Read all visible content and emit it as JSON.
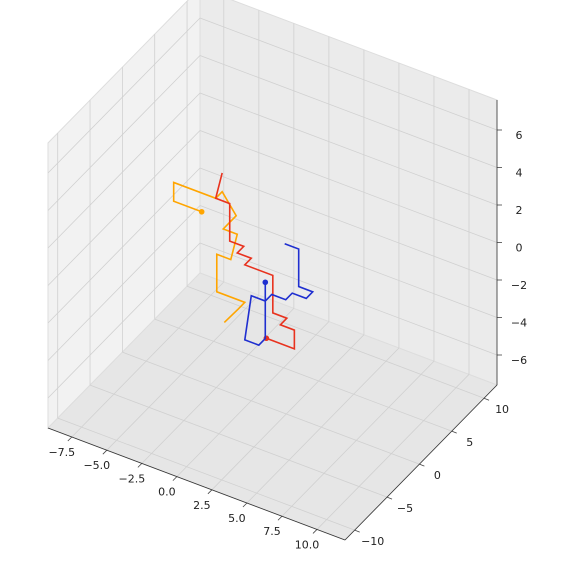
{
  "chart_data": {
    "type": "line3d",
    "xlim": [
      -9.2,
      12
    ],
    "ylim": [
      -11.5,
      12
    ],
    "zlim": [
      -7.6,
      7.6
    ],
    "xticks": [
      {
        "value": -7.5,
        "label": "−7.5"
      },
      {
        "value": -5,
        "label": "−5.0"
      },
      {
        "value": -2.5,
        "label": "−2.5"
      },
      {
        "value": 0,
        "label": "0.0"
      },
      {
        "value": 2.5,
        "label": "2.5"
      },
      {
        "value": 5,
        "label": "5.0"
      },
      {
        "value": 7.5,
        "label": "7.5"
      },
      {
        "value": 10,
        "label": "10.0"
      }
    ],
    "yticks": [
      {
        "value": -10,
        "label": "−10"
      },
      {
        "value": -5,
        "label": "−5"
      },
      0,
      5,
      10
    ],
    "zticks": [
      {
        "value": -6,
        "label": "−6"
      },
      {
        "value": -4,
        "label": "−4"
      },
      {
        "value": -2,
        "label": "−2"
      },
      0,
      2,
      4,
      6
    ],
    "grid": true,
    "series": [
      {
        "color": "#ffa500",
        "x": [
          -4,
          -6,
          -6,
          -3,
          -3,
          -2,
          -2,
          -1,
          -1,
          -2,
          -2,
          0,
          0,
          -1
        ],
        "y": [
          1,
          1,
          1,
          1,
          2,
          2,
          0,
          0,
          -1,
          -1,
          -1,
          -1,
          -2,
          -2
        ],
        "z": [
          1,
          1,
          2,
          2,
          2,
          1,
          1,
          1,
          0,
          0,
          -2,
          -2,
          -2,
          -3
        ]
      },
      {
        "color": "#e8321e",
        "x": [
          2,
          4,
          4,
          3,
          3,
          2,
          2,
          0,
          0,
          -1,
          -1,
          -2,
          -2,
          -3,
          -3
        ],
        "y": [
          -2,
          -2,
          -2,
          -2,
          -1,
          -1,
          -1,
          -1,
          0,
          0,
          1,
          1,
          1,
          1,
          2
        ],
        "z": [
          -3,
          -3,
          -2,
          -2,
          -2,
          -2,
          0,
          0,
          0,
          0,
          0,
          0,
          2,
          2,
          3
        ]
      },
      {
        "color": "#1f2fd0",
        "x": [
          1,
          1,
          1,
          0,
          0,
          1,
          1,
          2,
          2,
          3,
          3,
          2,
          2,
          1
        ],
        "y": [
          0,
          0,
          -1,
          -1,
          0,
          0,
          1,
          1,
          2,
          2,
          3,
          3,
          3,
          3
        ],
        "z": [
          -1,
          -4,
          -4,
          -4,
          -2,
          -2,
          -2,
          -2,
          -2,
          -2,
          -2,
          -2,
          0,
          0
        ]
      }
    ]
  }
}
